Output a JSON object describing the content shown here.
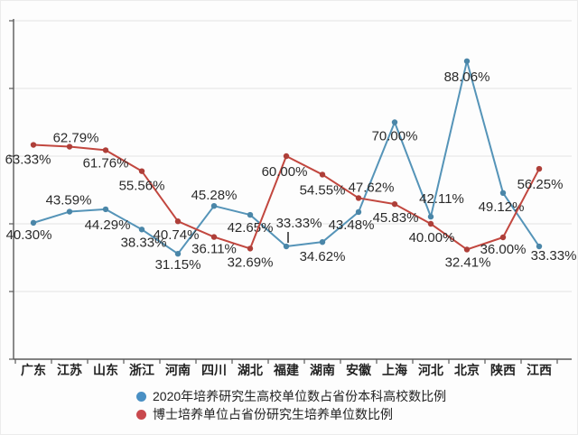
{
  "chart_data": {
    "type": "line",
    "categories": [
      "广东",
      "江苏",
      "山东",
      "浙江",
      "河南",
      "四川",
      "湖北",
      "福建",
      "湖南",
      "安徽",
      "上海",
      "河北",
      "北京",
      "陕西",
      "江西"
    ],
    "series": [
      {
        "name": "2020年培养研究生高校单位数占省份本科高校数比例",
        "color": "#5594b8",
        "marker_color": "#4a86a8",
        "legend_color": "#4a90c4",
        "values": [
          40.3,
          43.59,
          44.29,
          38.33,
          31.15,
          45.28,
          42.65,
          33.33,
          34.62,
          43.48,
          70.0,
          42.11,
          88.06,
          49.12,
          33.33
        ]
      },
      {
        "name": "博士培养单位占省份研究生培养单位数比例",
        "color": "#c2473f",
        "marker_color": "#ae3f39",
        "legend_color": "#c9494e",
        "values": [
          63.33,
          62.79,
          61.76,
          55.56,
          40.74,
          36.11,
          32.69,
          60.0,
          54.55,
          47.62,
          45.83,
          40.0,
          32.41,
          36.0,
          56.25
        ]
      }
    ],
    "label_format": "percent-2dp",
    "title": "",
    "xlabel": "",
    "ylabel": "",
    "ylim": [
      0,
      100
    ],
    "grid": true,
    "grid_interval": 20,
    "y_tick_labels_visible": false,
    "legend_position": "bottom",
    "label_layout": [
      [
        [
          -5,
          18
        ],
        [
          -1,
          -8
        ],
        [
          2,
          22
        ],
        [
          2,
          19
        ],
        [
          0,
          17
        ],
        [
          0,
          -7
        ],
        [
          0,
          19
        ],
        [
          14,
          -21
        ],
        [
          0,
          21
        ],
        [
          -8,
          19
        ],
        [
          0,
          20
        ],
        [
          12,
          -15
        ],
        [
          0,
          22
        ],
        [
          -2,
          20
        ],
        [
          16,
          15
        ]
      ],
      [
        [
          -6,
          21
        ],
        [
          7,
          -5
        ],
        [
          0,
          19
        ],
        [
          0,
          21
        ],
        [
          -2,
          20
        ],
        [
          0,
          18
        ],
        [
          0,
          20
        ],
        [
          -2,
          22
        ],
        [
          0,
          22
        ],
        [
          14,
          -7
        ],
        [
          1,
          20
        ],
        [
          1,
          20
        ],
        [
          1,
          19
        ],
        [
          0,
          18
        ],
        [
          1,
          22
        ]
      ]
    ],
    "leader_lines": [
      {
        "series": 0,
        "index": 7,
        "dx": 2,
        "from": -16,
        "to": -4
      }
    ]
  }
}
